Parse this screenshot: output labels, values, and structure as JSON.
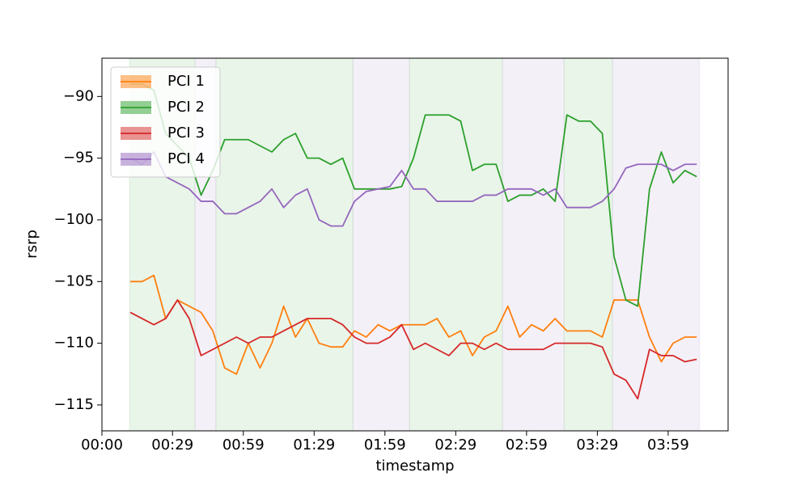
{
  "chart_data": {
    "type": "line",
    "x_label": "timestamp",
    "y_label": "rsrp",
    "x": [
      12,
      17,
      22,
      27,
      32,
      37,
      42,
      47,
      52,
      57,
      62,
      67,
      72,
      77,
      82,
      87,
      92,
      97,
      102,
      107,
      112,
      117,
      122,
      127,
      132,
      137,
      142,
      147,
      152,
      157,
      162,
      167,
      172,
      177,
      182,
      187,
      192,
      197,
      202,
      207,
      212,
      217,
      222,
      227,
      232,
      237,
      242,
      247,
      252
    ],
    "series": [
      {
        "name": "PCI 1",
        "color": "#ff7f0e",
        "values": [
          -105,
          -105,
          -104.5,
          -108,
          -106.5,
          -107,
          -107.5,
          -109,
          -112,
          -112.5,
          -110,
          -112,
          -110,
          -107,
          -109.5,
          -108,
          -110,
          -110.3,
          -110.3,
          -109,
          -109.5,
          -108.5,
          -109,
          -108.5,
          -108.5,
          -108.5,
          -108,
          -109.5,
          -109,
          -111,
          -109.5,
          -109,
          -107,
          -109.5,
          -108.5,
          -109,
          -108,
          -109,
          -109,
          -109,
          -109.5,
          -106.5,
          -106.5,
          -106.5,
          -109.5,
          -111.5,
          -110,
          -109.5,
          -109.5
        ]
      },
      {
        "name": "PCI 2",
        "color": "#2ca02c",
        "values": [
          -89,
          -89,
          -89.5,
          -93,
          -94,
          -95,
          -98,
          -96,
          -93.5,
          -93.5,
          -93.5,
          -94,
          -94.5,
          -93.5,
          -93,
          -95,
          -95,
          -95.5,
          -95,
          -97.5,
          -97.5,
          -97.5,
          -97.5,
          -97.3,
          -95,
          -91.5,
          -91.5,
          -91.5,
          -92,
          -96,
          -95.5,
          -95.5,
          -98.5,
          -98,
          -98,
          -97.5,
          -98.5,
          -91.5,
          -92,
          -92,
          -93,
          -103,
          -106.5,
          -107,
          -97.5,
          -94.5,
          -97,
          -96,
          -96.5
        ]
      },
      {
        "name": "PCI 3",
        "color": "#d62728",
        "values": [
          -107.5,
          -108,
          -108.5,
          -108,
          -106.5,
          -108,
          -111,
          -110.5,
          -110,
          -109.5,
          -110,
          -109.5,
          -109.5,
          -109,
          -108.5,
          -108,
          -108,
          -108,
          -108.5,
          -109.5,
          -110,
          -110,
          -109.5,
          -108.5,
          -110.5,
          -110,
          -110.5,
          -111,
          -110,
          -110,
          -110.5,
          -110,
          -110.5,
          -110.5,
          -110.5,
          -110.5,
          -110,
          -110,
          -110,
          -110,
          -110.3,
          -112.5,
          -113,
          -114.5,
          -110.5,
          -111,
          -111,
          -111.5,
          -111.3
        ]
      },
      {
        "name": "PCI 4",
        "color": "#9467bd",
        "values": [
          -95,
          -95.5,
          -94.5,
          -96.5,
          -97,
          -97.5,
          -98.5,
          -98.5,
          -99.5,
          -99.5,
          -99,
          -98.5,
          -97.5,
          -99,
          -98,
          -97.5,
          -100,
          -100.5,
          -100.5,
          -98.5,
          -97.7,
          -97.5,
          -97.3,
          -96,
          -97.5,
          -97.5,
          -98.5,
          -98.5,
          -98.5,
          -98.5,
          -98,
          -98,
          -97.5,
          -97.5,
          -97.5,
          -98,
          -97.5,
          -99,
          -99,
          -99,
          -98.5,
          -97.5,
          -95.8,
          -95.5,
          -95.5,
          -95.5,
          -96,
          -95.5,
          -95.5
        ]
      }
    ],
    "spans": [
      {
        "start": 11.7,
        "end": 39.4,
        "color": "#2ca02c"
      },
      {
        "start": 39.4,
        "end": 48.3,
        "color": "#9467bd"
      },
      {
        "start": 48.3,
        "end": 106.3,
        "color": "#2ca02c"
      },
      {
        "start": 106.3,
        "end": 130.3,
        "color": "#9467bd"
      },
      {
        "start": 130.3,
        "end": 169.7,
        "color": "#2ca02c"
      },
      {
        "start": 169.7,
        "end": 195.8,
        "color": "#9467bd"
      },
      {
        "start": 195.8,
        "end": 216.3,
        "color": "#2ca02c"
      },
      {
        "start": 216.3,
        "end": 253.3,
        "color": "#9467bd"
      }
    ],
    "xlim": [
      0,
      265.3
    ],
    "xticks": [
      {
        "value": 0,
        "label": "00:00"
      },
      {
        "value": 29.9,
        "label": "00:29"
      },
      {
        "value": 59.9,
        "label": "00:59"
      },
      {
        "value": 89.9,
        "label": "01:29"
      },
      {
        "value": 119.9,
        "label": "01:59"
      },
      {
        "value": 149.9,
        "label": "02:29"
      },
      {
        "value": 179.9,
        "label": "02:59"
      },
      {
        "value": 209.9,
        "label": "03:29"
      },
      {
        "value": 239.9,
        "label": "03:59"
      }
    ],
    "ylim": [
      -117.1,
      -86.9
    ],
    "yticks": [
      {
        "value": -115,
        "label": "−115"
      },
      {
        "value": -110,
        "label": "−110"
      },
      {
        "value": -105,
        "label": "−105"
      },
      {
        "value": -100,
        "label": "−100"
      },
      {
        "value": -95,
        "label": "−95"
      },
      {
        "value": -90,
        "label": "−90"
      }
    ],
    "legend": "upper left",
    "grid": false
  }
}
